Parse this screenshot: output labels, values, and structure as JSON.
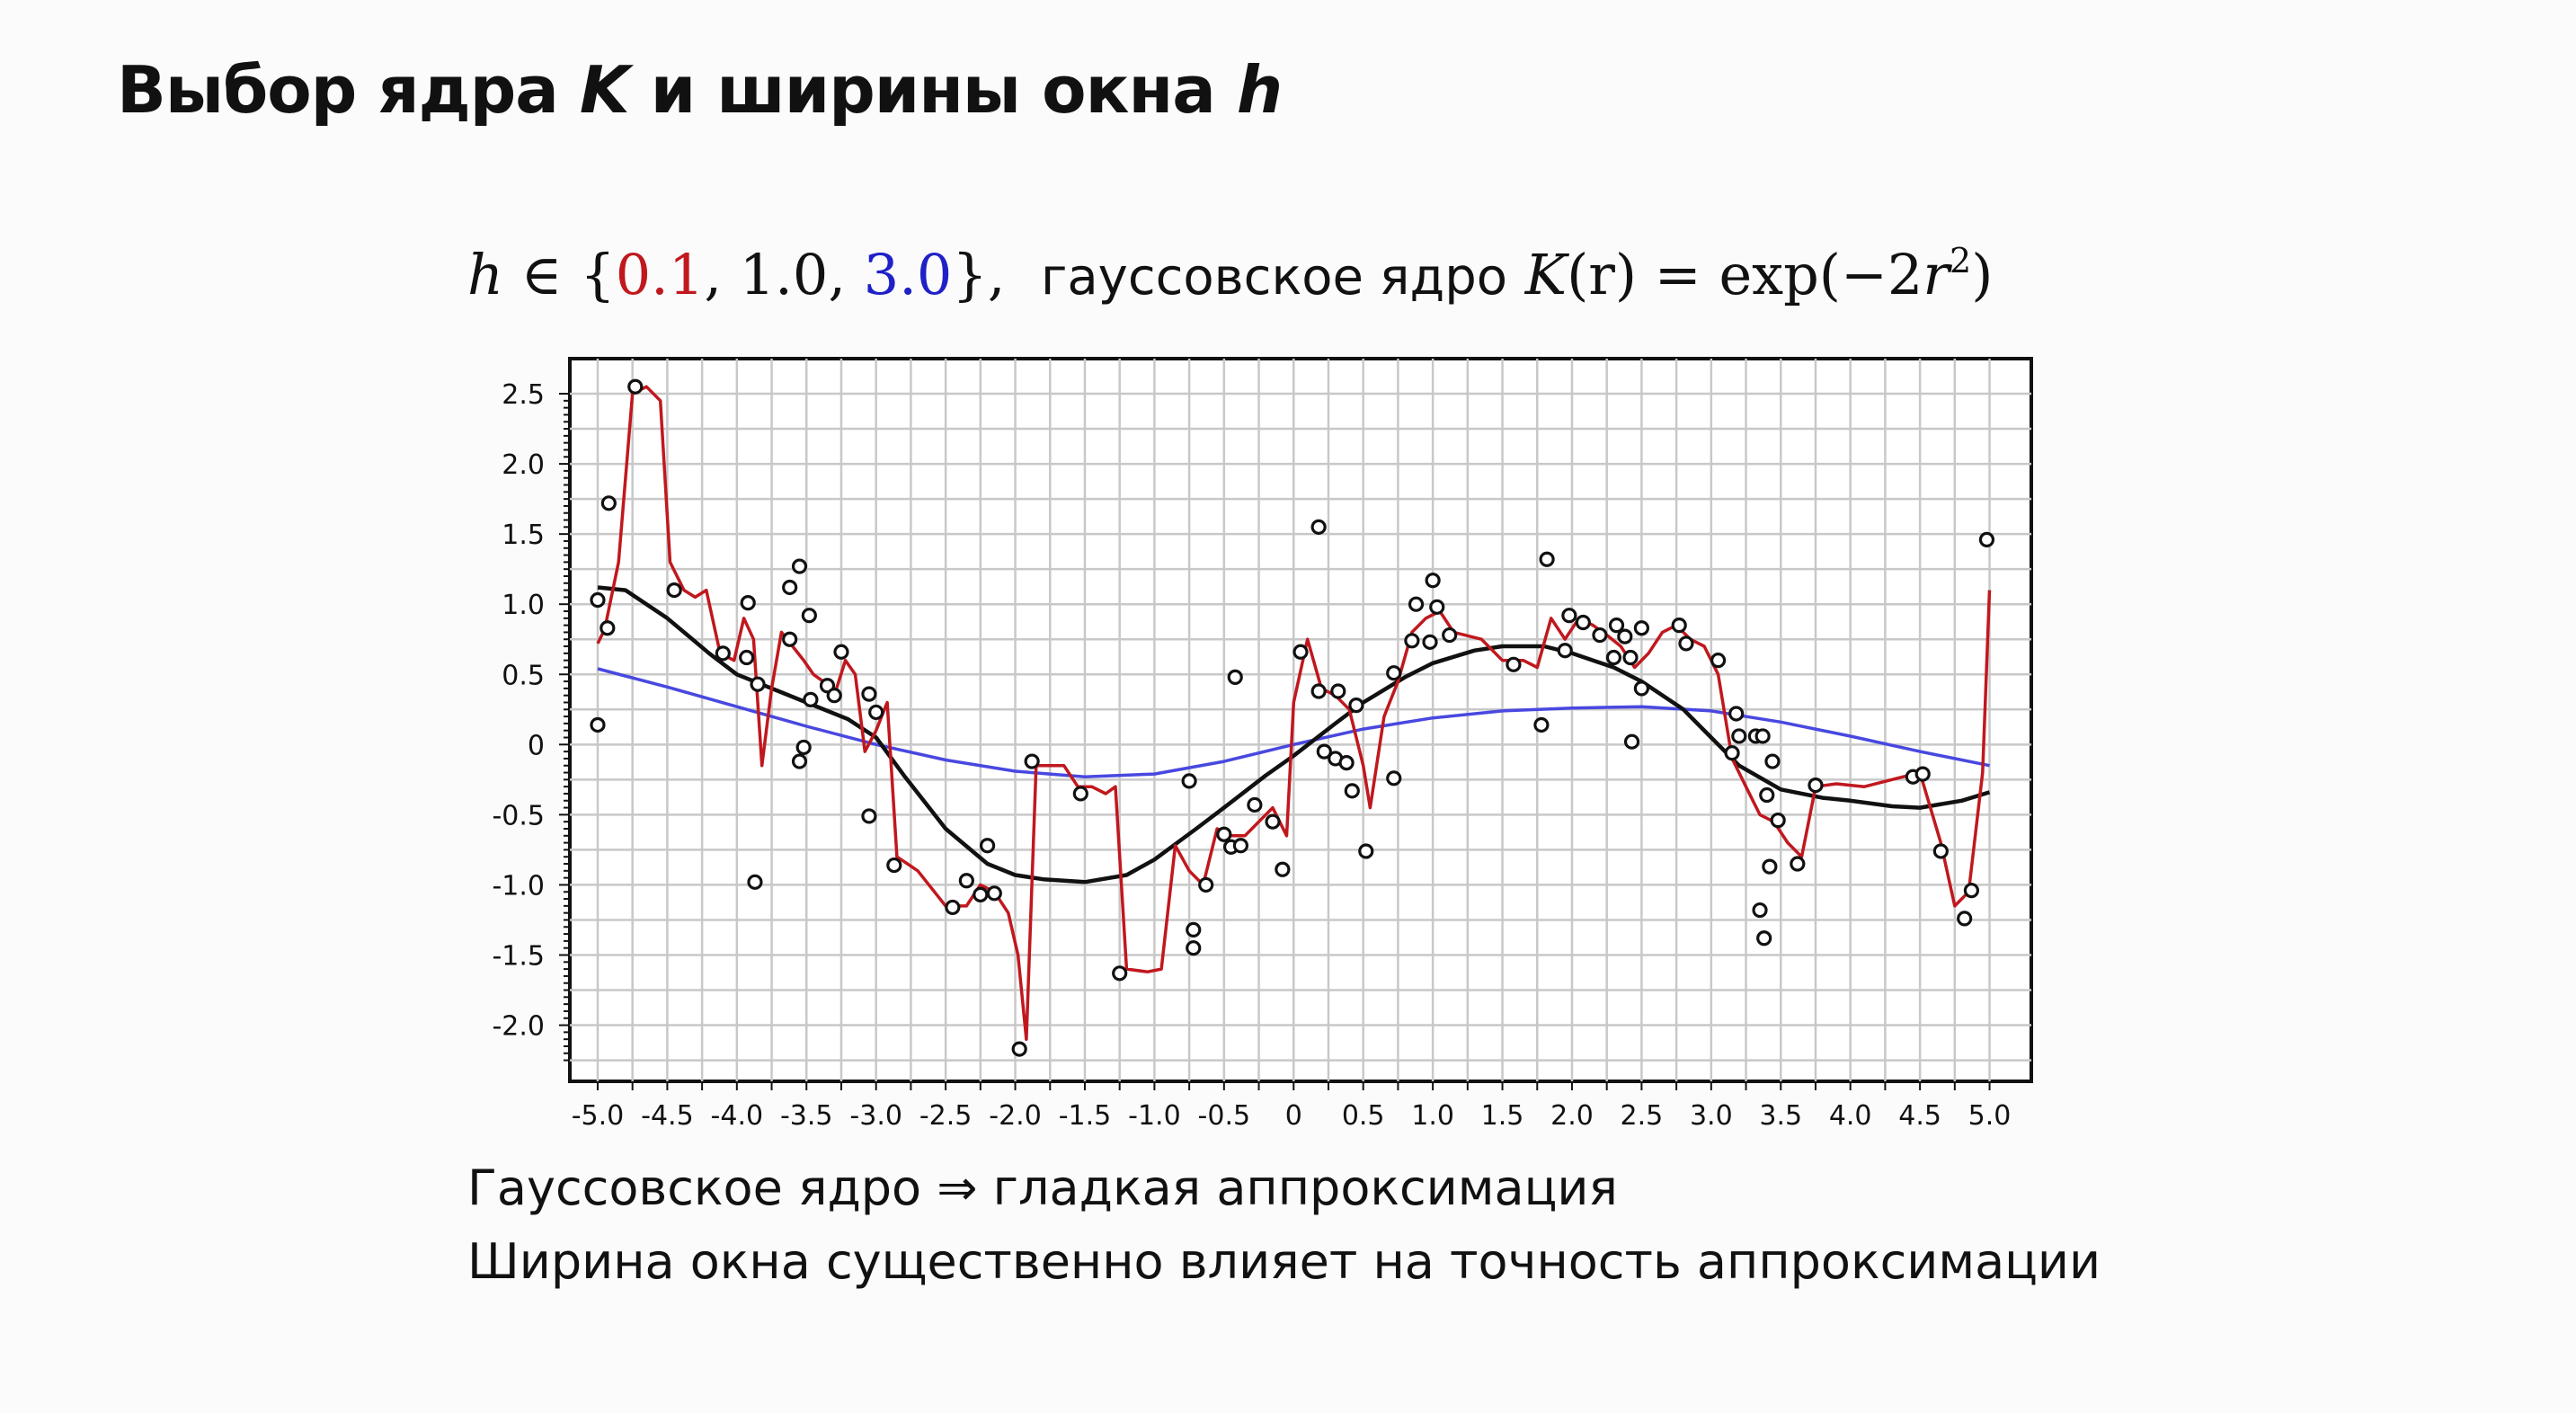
{
  "slide": {
    "title_main": "Выбор ядра ",
    "title_K": "K",
    "title_mid": " и ширины окна ",
    "title_h": "h"
  },
  "formula": {
    "h": "h",
    "in": " ∈ {",
    "v1": "0.1",
    "sep1": ", 1.0, ",
    "v3": "3.0",
    "close": "},",
    "kernel_text": "гауссовское ядро",
    "K": "K",
    "paren_r": "(r)",
    "eq_exp": " = exp(−2",
    "r": "r",
    "pow": "2",
    "end": ")"
  },
  "bullets": [
    "Гауссовское ядро ⇒ гладкая аппроксимация",
    "Ширина окна существенно влияет на точность аппроксимации"
  ],
  "colors": {
    "h_0_1": "#c0181e",
    "h_1_0": "#111111",
    "h_3_0": "#4848e0",
    "points": "#111111",
    "grid": "#c8c8c8"
  },
  "chart_data": {
    "type": "scatter",
    "xlim": [
      -5.2,
      5.3
    ],
    "ylim": [
      -2.4,
      2.75
    ],
    "xticks": [
      "-5.0",
      "-4.5",
      "-4.0",
      "-3.5",
      "-3.0",
      "-2.5",
      "-2.0",
      "-1.5",
      "-1.0",
      "-0.5",
      "0",
      "0.5",
      "1.0",
      "1.5",
      "2.0",
      "2.5",
      "3.0",
      "3.5",
      "4.0",
      "4.5",
      "5.0"
    ],
    "yticks": [
      "2.5",
      "2.0",
      "1.5",
      "1.0",
      "0.5",
      "0",
      "-0.5",
      "-1.0",
      "-1.5",
      "-2.0"
    ],
    "grid": true,
    "points": [
      [
        -5.0,
        1.03
      ],
      [
        -5.0,
        0.14
      ],
      [
        -4.92,
        1.72
      ],
      [
        -4.93,
        0.83
      ],
      [
        -4.73,
        2.55
      ],
      [
        -4.45,
        1.1
      ],
      [
        -4.1,
        0.65
      ],
      [
        -3.92,
        1.01
      ],
      [
        -3.93,
        0.62
      ],
      [
        -3.85,
        0.43
      ],
      [
        -3.87,
        -0.98
      ],
      [
        -3.62,
        1.12
      ],
      [
        -3.62,
        0.75
      ],
      [
        -3.55,
        1.27
      ],
      [
        -3.55,
        -0.12
      ],
      [
        -3.52,
        -0.02
      ],
      [
        -3.48,
        0.92
      ],
      [
        -3.47,
        0.32
      ],
      [
        -3.35,
        0.42
      ],
      [
        -3.3,
        0.35
      ],
      [
        -3.25,
        0.66
      ],
      [
        -3.05,
        -0.51
      ],
      [
        -3.05,
        0.36
      ],
      [
        -3.0,
        0.23
      ],
      [
        -2.87,
        -0.86
      ],
      [
        -2.45,
        -1.16
      ],
      [
        -2.35,
        -0.97
      ],
      [
        -2.25,
        -1.07
      ],
      [
        -2.2,
        -0.72
      ],
      [
        -2.15,
        -1.06
      ],
      [
        -1.97,
        -2.17
      ],
      [
        -1.88,
        -0.12
      ],
      [
        -1.53,
        -0.35
      ],
      [
        -1.25,
        -1.63
      ],
      [
        -0.75,
        -0.26
      ],
      [
        -0.72,
        -1.32
      ],
      [
        -0.72,
        -1.45
      ],
      [
        -0.63,
        -1.0
      ],
      [
        -0.5,
        -0.64
      ],
      [
        -0.45,
        -0.73
      ],
      [
        -0.42,
        0.48
      ],
      [
        -0.38,
        -0.72
      ],
      [
        -0.28,
        -0.43
      ],
      [
        -0.15,
        -0.55
      ],
      [
        -0.08,
        -0.89
      ],
      [
        0.05,
        0.66
      ],
      [
        0.18,
        1.55
      ],
      [
        0.18,
        0.38
      ],
      [
        0.22,
        -0.05
      ],
      [
        0.3,
        -0.1
      ],
      [
        0.32,
        0.38
      ],
      [
        0.38,
        -0.13
      ],
      [
        0.42,
        -0.33
      ],
      [
        0.45,
        0.28
      ],
      [
        0.52,
        -0.76
      ],
      [
        0.72,
        -0.24
      ],
      [
        0.72,
        0.51
      ],
      [
        0.85,
        0.74
      ],
      [
        0.88,
        1.0
      ],
      [
        0.98,
        0.73
      ],
      [
        1.0,
        1.17
      ],
      [
        1.03,
        0.98
      ],
      [
        1.12,
        0.78
      ],
      [
        1.58,
        0.57
      ],
      [
        1.78,
        0.14
      ],
      [
        1.82,
        1.32
      ],
      [
        1.95,
        0.67
      ],
      [
        1.98,
        0.92
      ],
      [
        2.08,
        0.87
      ],
      [
        2.2,
        0.78
      ],
      [
        2.3,
        0.62
      ],
      [
        2.32,
        0.85
      ],
      [
        2.38,
        0.77
      ],
      [
        2.42,
        0.62
      ],
      [
        2.43,
        0.02
      ],
      [
        2.5,
        0.83
      ],
      [
        2.5,
        0.4
      ],
      [
        2.77,
        0.85
      ],
      [
        2.82,
        0.72
      ],
      [
        3.05,
        0.6
      ],
      [
        3.15,
        -0.06
      ],
      [
        3.18,
        0.22
      ],
      [
        3.2,
        0.06
      ],
      [
        3.32,
        0.06
      ],
      [
        3.35,
        -1.18
      ],
      [
        3.37,
        0.06
      ],
      [
        3.38,
        -1.38
      ],
      [
        3.4,
        -0.36
      ],
      [
        3.42,
        -0.87
      ],
      [
        3.44,
        -0.12
      ],
      [
        3.48,
        -0.54
      ],
      [
        3.62,
        -0.85
      ],
      [
        3.75,
        -0.29
      ],
      [
        4.45,
        -0.23
      ],
      [
        4.52,
        -0.21
      ],
      [
        4.65,
        -0.76
      ],
      [
        4.82,
        -1.24
      ],
      [
        4.87,
        -1.04
      ],
      [
        4.98,
        1.46
      ]
    ],
    "series": [
      {
        "name": "h = 3.0",
        "x": [
          -5.0,
          -4.5,
          -4.0,
          -3.5,
          -3.0,
          -2.5,
          -2.0,
          -1.5,
          -1.0,
          -0.5,
          0.0,
          0.5,
          1.0,
          1.5,
          2.0,
          2.5,
          3.0,
          3.5,
          4.0,
          4.5,
          5.0
        ],
        "y": [
          0.54,
          0.41,
          0.27,
          0.13,
          0.0,
          -0.11,
          -0.19,
          -0.23,
          -0.21,
          -0.12,
          0.0,
          0.11,
          0.19,
          0.24,
          0.26,
          0.27,
          0.24,
          0.16,
          0.06,
          -0.05,
          -0.15
        ]
      },
      {
        "name": "h = 1.0",
        "x": [
          -5.0,
          -4.8,
          -4.5,
          -4.2,
          -4.0,
          -3.7,
          -3.5,
          -3.2,
          -3.0,
          -2.8,
          -2.5,
          -2.2,
          -2.0,
          -1.8,
          -1.5,
          -1.2,
          -1.0,
          -0.7,
          -0.5,
          -0.2,
          0.0,
          0.3,
          0.5,
          0.8,
          1.0,
          1.3,
          1.5,
          1.8,
          2.0,
          2.3,
          2.5,
          2.8,
          3.0,
          3.2,
          3.5,
          3.8,
          4.0,
          4.3,
          4.5,
          4.8,
          5.0
        ],
        "y": [
          1.12,
          1.1,
          0.9,
          0.65,
          0.5,
          0.38,
          0.3,
          0.18,
          0.05,
          -0.22,
          -0.6,
          -0.85,
          -0.93,
          -0.96,
          -0.98,
          -0.93,
          -0.82,
          -0.6,
          -0.45,
          -0.22,
          -0.08,
          0.15,
          0.3,
          0.48,
          0.58,
          0.67,
          0.7,
          0.7,
          0.65,
          0.55,
          0.45,
          0.25,
          0.05,
          -0.15,
          -0.32,
          -0.38,
          -0.4,
          -0.44,
          -0.45,
          -0.4,
          -0.34
        ]
      },
      {
        "name": "h = 0.1",
        "x": [
          -5.0,
          -4.95,
          -4.85,
          -4.75,
          -4.65,
          -4.55,
          -4.48,
          -4.38,
          -4.3,
          -4.22,
          -4.12,
          -4.02,
          -3.95,
          -3.88,
          -3.82,
          -3.75,
          -3.68,
          -3.6,
          -3.52,
          -3.45,
          -3.38,
          -3.3,
          -3.22,
          -3.15,
          -3.08,
          -3.0,
          -2.92,
          -2.85,
          -2.7,
          -2.5,
          -2.35,
          -2.25,
          -2.15,
          -2.05,
          -1.98,
          -1.92,
          -1.85,
          -1.65,
          -1.55,
          -1.45,
          -1.35,
          -1.28,
          -1.2,
          -1.05,
          -0.95,
          -0.85,
          -0.75,
          -0.65,
          -0.55,
          -0.45,
          -0.35,
          -0.25,
          -0.15,
          -0.05,
          0.0,
          0.1,
          0.2,
          0.3,
          0.4,
          0.5,
          0.55,
          0.65,
          0.75,
          0.85,
          0.95,
          1.05,
          1.15,
          1.35,
          1.5,
          1.65,
          1.75,
          1.85,
          1.95,
          2.05,
          2.15,
          2.25,
          2.35,
          2.45,
          2.55,
          2.65,
          2.75,
          2.85,
          2.95,
          3.05,
          3.15,
          3.25,
          3.35,
          3.45,
          3.55,
          3.65,
          3.75,
          3.9,
          4.1,
          4.3,
          4.5,
          4.65,
          4.75,
          4.85,
          4.95,
          5.0
        ],
        "y": [
          0.72,
          0.82,
          1.3,
          2.5,
          2.55,
          2.45,
          1.3,
          1.1,
          1.05,
          1.1,
          0.65,
          0.6,
          0.9,
          0.75,
          -0.15,
          0.4,
          0.8,
          0.7,
          0.6,
          0.5,
          0.45,
          0.35,
          0.6,
          0.5,
          -0.05,
          0.1,
          0.3,
          -0.8,
          -0.9,
          -1.15,
          -1.15,
          -1.0,
          -1.05,
          -1.2,
          -1.5,
          -2.1,
          -0.15,
          -0.15,
          -0.3,
          -0.3,
          -0.35,
          -0.3,
          -1.6,
          -1.62,
          -1.6,
          -0.72,
          -0.9,
          -1.0,
          -0.6,
          -0.65,
          -0.65,
          -0.55,
          -0.45,
          -0.65,
          0.3,
          0.75,
          0.4,
          0.35,
          0.25,
          -0.15,
          -0.45,
          0.2,
          0.45,
          0.8,
          0.9,
          0.95,
          0.8,
          0.75,
          0.6,
          0.6,
          0.55,
          0.9,
          0.75,
          0.9,
          0.85,
          0.78,
          0.7,
          0.55,
          0.65,
          0.8,
          0.85,
          0.75,
          0.7,
          0.5,
          -0.1,
          -0.3,
          -0.5,
          -0.55,
          -0.7,
          -0.8,
          -0.3,
          -0.28,
          -0.3,
          -0.25,
          -0.2,
          -0.7,
          -1.15,
          -1.05,
          -0.2,
          1.1
        ]
      }
    ]
  }
}
